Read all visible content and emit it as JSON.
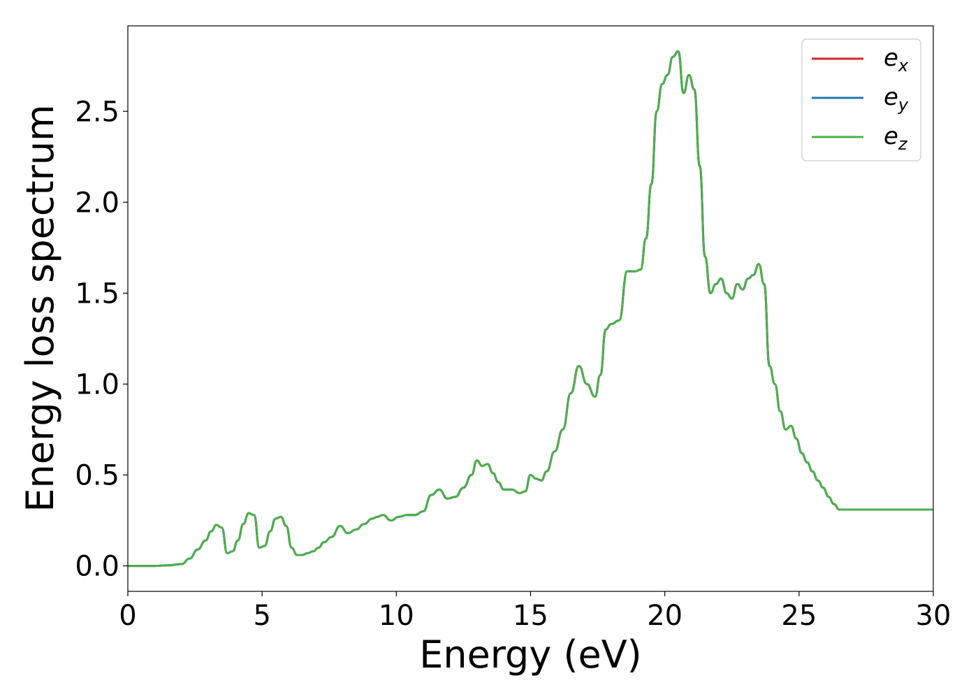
{
  "chart_data": {
    "type": "line",
    "title": "",
    "xlabel": "Energy (eV)",
    "ylabel": "Energy loss spectrum",
    "xlim": [
      0,
      30
    ],
    "ylim": [
      -0.14,
      2.97
    ],
    "xticks": [
      0,
      5,
      10,
      15,
      20,
      25,
      30
    ],
    "xtick_labels": [
      "0",
      "5",
      "10",
      "15",
      "20",
      "25",
      "30"
    ],
    "yticks": [
      0.0,
      0.5,
      1.0,
      1.5,
      2.0,
      2.5
    ],
    "ytick_labels": [
      "0.0",
      "0.5",
      "1.0",
      "1.5",
      "2.0",
      "2.5"
    ],
    "grid": false,
    "legend_position": "top-right",
    "x": [
      0,
      1,
      1.5,
      2.0,
      2.3,
      2.6,
      2.9,
      3.1,
      3.3,
      3.5,
      3.7,
      3.9,
      4.1,
      4.3,
      4.5,
      4.7,
      4.9,
      5.1,
      5.3,
      5.5,
      5.7,
      5.9,
      6.1,
      6.3,
      6.5,
      6.7,
      6.9,
      7.1,
      7.3,
      7.6,
      7.9,
      8.2,
      8.5,
      8.8,
      9.1,
      9.3,
      9.5,
      9.8,
      10.1,
      10.4,
      10.7,
      11.0,
      11.3,
      11.6,
      11.9,
      12.2,
      12.5,
      12.8,
      13.0,
      13.2,
      13.4,
      13.6,
      13.8,
      14.0,
      14.3,
      14.6,
      14.8,
      15.0,
      15.2,
      15.4,
      15.6,
      15.9,
      16.2,
      16.5,
      16.8,
      17.1,
      17.4,
      17.6,
      17.8,
      18.0,
      18.3,
      18.6,
      18.9,
      19.1,
      19.3,
      19.5,
      19.7,
      19.9,
      20.1,
      20.3,
      20.5,
      20.7,
      20.9,
      21.1,
      21.3,
      21.5,
      21.7,
      21.9,
      22.1,
      22.3,
      22.5,
      22.7,
      22.9,
      23.1,
      23.3,
      23.5,
      23.7,
      23.9,
      24.1,
      24.3,
      24.5,
      24.7,
      24.9,
      25.1,
      25.3,
      25.5,
      25.7,
      25.9,
      26.1,
      26.3,
      26.5,
      26.7,
      26.9,
      27.1,
      27.3,
      27.5,
      27.7,
      27.9,
      28.1,
      28.3,
      28.5,
      28.8,
      29.1,
      29.4,
      29.7,
      30.0
    ],
    "series": [
      {
        "name": "e_x",
        "label_base": "e",
        "label_sub": "x",
        "color": "#d62728"
      },
      {
        "name": "e_y",
        "label_base": "e",
        "label_sub": "y",
        "color": "#1f77b4"
      },
      {
        "name": "e_z",
        "label_base": "e",
        "label_sub": "z",
        "color": "#4daf4a"
      }
    ],
    "y": [
      0.0,
      0.0,
      0.003,
      0.01,
      0.04,
      0.09,
      0.14,
      0.19,
      0.225,
      0.21,
      0.07,
      0.08,
      0.14,
      0.23,
      0.29,
      0.28,
      0.1,
      0.11,
      0.19,
      0.26,
      0.27,
      0.22,
      0.1,
      0.06,
      0.06,
      0.07,
      0.08,
      0.1,
      0.13,
      0.16,
      0.22,
      0.18,
      0.2,
      0.23,
      0.26,
      0.27,
      0.28,
      0.25,
      0.27,
      0.28,
      0.28,
      0.3,
      0.39,
      0.42,
      0.37,
      0.38,
      0.43,
      0.5,
      0.58,
      0.55,
      0.56,
      0.51,
      0.46,
      0.42,
      0.42,
      0.4,
      0.41,
      0.5,
      0.48,
      0.47,
      0.52,
      0.63,
      0.75,
      0.95,
      1.1,
      1.0,
      0.93,
      1.05,
      1.3,
      1.33,
      1.35,
      1.62,
      1.62,
      1.63,
      1.8,
      2.1,
      2.5,
      2.65,
      2.7,
      2.8,
      2.83,
      2.6,
      2.7,
      2.62,
      2.2,
      1.7,
      1.5,
      1.55,
      1.58,
      1.5,
      1.47,
      1.55,
      1.52,
      1.58,
      1.6,
      1.66,
      1.55,
      1.1,
      1.0,
      0.85,
      0.75,
      0.77,
      0.7,
      0.62,
      0.57,
      0.52,
      0.47,
      0.43,
      0.38,
      0.34,
      0.31,
      0.31,
      0.31,
      0.31,
      0.31,
      0.31,
      0.31,
      0.31,
      0.31,
      0.31,
      0.31,
      0.31,
      0.31,
      0.31,
      0.31,
      0.31
    ]
  }
}
